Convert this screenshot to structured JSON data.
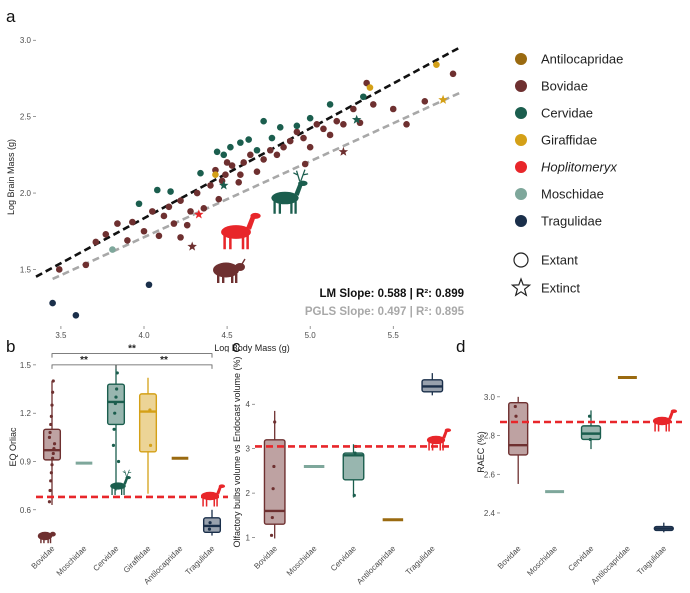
{
  "colors": {
    "Antilocapridae": "#9a6a10",
    "Bovidae": "#6e3030",
    "Cervidae": "#1b5e4e",
    "Giraffidae": "#d4a017",
    "Hoplitomeryx": "#e8262a",
    "Moschidae": "#7ea79b",
    "Tragulidae": "#1a2f4a",
    "lm": "#111111",
    "pgls": "#a8a8a8",
    "ref": "#e8262a"
  },
  "legend": {
    "families": [
      {
        "key": "Antilocapridae",
        "label": "Antilocapridae",
        "italic": false
      },
      {
        "key": "Bovidae",
        "label": "Bovidae",
        "italic": false
      },
      {
        "key": "Cervidae",
        "label": "Cervidae",
        "italic": false
      },
      {
        "key": "Giraffidae",
        "label": "Giraffidae",
        "italic": false
      },
      {
        "key": "Hoplitomeryx",
        "label": "Hoplitomeryx",
        "italic": true
      },
      {
        "key": "Moschidae",
        "label": "Moschidae",
        "italic": false
      },
      {
        "key": "Tragulidae",
        "label": "Tragulidae",
        "italic": false
      }
    ],
    "status": [
      {
        "shape": "circle",
        "label": "Extant"
      },
      {
        "shape": "star",
        "label": "Extinct"
      }
    ]
  },
  "chart_data": [
    {
      "panel": "a",
      "type": "scatter",
      "xlabel": "Log Body Mass (g)",
      "ylabel": "Log Brain Mass (g)",
      "xlim": [
        3.35,
        5.95
      ],
      "ylim": [
        1.13,
        3.08
      ],
      "xticks": [
        3.5,
        4.0,
        4.5,
        5.0,
        5.5
      ],
      "xtick_labels": [
        "3.5",
        "4.0",
        "4.5",
        "5.0",
        "5.5"
      ],
      "yticks": [
        1.5,
        2.0,
        2.5,
        3.0
      ],
      "ytick_labels": [
        "1.5",
        "2.0",
        "2.5",
        "3.0"
      ],
      "lm_line": {
        "label": "LM Slope: 0.588 | R²: 0.899",
        "slope": 0.588,
        "intercept": -0.517,
        "x_range": [
          3.35,
          5.9
        ]
      },
      "pgls_line": {
        "label": "PGLS Slope: 0.497 | R²: 0.895",
        "slope": 0.497,
        "intercept": -0.277,
        "x_range": [
          3.45,
          5.9
        ]
      },
      "points": [
        {
          "f": "Tragulidae",
          "x": 3.45,
          "y": 1.28,
          "s": "extant"
        },
        {
          "f": "Tragulidae",
          "x": 3.59,
          "y": 1.2,
          "s": "extant"
        },
        {
          "f": "Tragulidae",
          "x": 4.03,
          "y": 1.4,
          "s": "extant"
        },
        {
          "f": "Moschidae",
          "x": 3.81,
          "y": 1.63,
          "s": "extant"
        },
        {
          "f": "Bovidae",
          "x": 3.49,
          "y": 1.5,
          "s": "extant"
        },
        {
          "f": "Bovidae",
          "x": 3.65,
          "y": 1.53,
          "s": "extant"
        },
        {
          "f": "Bovidae",
          "x": 3.71,
          "y": 1.68,
          "s": "extant"
        },
        {
          "f": "Bovidae",
          "x": 3.77,
          "y": 1.73,
          "s": "extant"
        },
        {
          "f": "Bovidae",
          "x": 3.84,
          "y": 1.8,
          "s": "extant"
        },
        {
          "f": "Bovidae",
          "x": 3.9,
          "y": 1.69,
          "s": "extant"
        },
        {
          "f": "Bovidae",
          "x": 3.93,
          "y": 1.81,
          "s": "extant"
        },
        {
          "f": "Bovidae",
          "x": 4.0,
          "y": 1.75,
          "s": "extant"
        },
        {
          "f": "Bovidae",
          "x": 4.05,
          "y": 1.88,
          "s": "extant"
        },
        {
          "f": "Bovidae",
          "x": 4.09,
          "y": 1.72,
          "s": "extant"
        },
        {
          "f": "Bovidae",
          "x": 4.12,
          "y": 1.85,
          "s": "extant"
        },
        {
          "f": "Bovidae",
          "x": 4.15,
          "y": 1.91,
          "s": "extant"
        },
        {
          "f": "Bovidae",
          "x": 4.18,
          "y": 1.8,
          "s": "extant"
        },
        {
          "f": "Bovidae",
          "x": 4.22,
          "y": 1.95,
          "s": "extant"
        },
        {
          "f": "Bovidae",
          "x": 4.26,
          "y": 1.79,
          "s": "extant"
        },
        {
          "f": "Bovidae",
          "x": 4.28,
          "y": 1.88,
          "s": "extant"
        },
        {
          "f": "Bovidae",
          "x": 4.32,
          "y": 2.0,
          "s": "extant"
        },
        {
          "f": "Bovidae",
          "x": 4.36,
          "y": 1.9,
          "s": "extant"
        },
        {
          "f": "Bovidae",
          "x": 4.4,
          "y": 2.05,
          "s": "extant"
        },
        {
          "f": "Bovidae",
          "x": 4.43,
          "y": 2.15,
          "s": "extant"
        },
        {
          "f": "Bovidae",
          "x": 4.45,
          "y": 1.96,
          "s": "extant"
        },
        {
          "f": "Bovidae",
          "x": 4.49,
          "y": 2.12,
          "s": "extant"
        },
        {
          "f": "Bovidae",
          "x": 4.53,
          "y": 2.18,
          "s": "extant"
        },
        {
          "f": "Bovidae",
          "x": 4.57,
          "y": 2.07,
          "s": "extant"
        },
        {
          "f": "Bovidae",
          "x": 4.6,
          "y": 2.2,
          "s": "extant"
        },
        {
          "f": "Bovidae",
          "x": 4.64,
          "y": 2.25,
          "s": "extant"
        },
        {
          "f": "Bovidae",
          "x": 4.68,
          "y": 2.14,
          "s": "extant"
        },
        {
          "f": "Bovidae",
          "x": 4.72,
          "y": 2.22,
          "s": "extant"
        },
        {
          "f": "Bovidae",
          "x": 4.76,
          "y": 2.28,
          "s": "extant"
        },
        {
          "f": "Bovidae",
          "x": 4.8,
          "y": 2.25,
          "s": "extant"
        },
        {
          "f": "Bovidae",
          "x": 4.84,
          "y": 2.3,
          "s": "extant"
        },
        {
          "f": "Bovidae",
          "x": 4.88,
          "y": 2.34,
          "s": "extant"
        },
        {
          "f": "Bovidae",
          "x": 4.92,
          "y": 2.4,
          "s": "extant"
        },
        {
          "f": "Bovidae",
          "x": 4.96,
          "y": 2.36,
          "s": "extant"
        },
        {
          "f": "Bovidae",
          "x": 5.0,
          "y": 2.3,
          "s": "extant"
        },
        {
          "f": "Bovidae",
          "x": 5.04,
          "y": 2.45,
          "s": "extant"
        },
        {
          "f": "Bovidae",
          "x": 5.08,
          "y": 2.42,
          "s": "extant"
        },
        {
          "f": "Bovidae",
          "x": 5.12,
          "y": 2.38,
          "s": "extant"
        },
        {
          "f": "Bovidae",
          "x": 5.16,
          "y": 2.47,
          "s": "extant"
        },
        {
          "f": "Bovidae",
          "x": 5.2,
          "y": 2.45,
          "s": "extant"
        },
        {
          "f": "Bovidae",
          "x": 5.26,
          "y": 2.55,
          "s": "extant"
        },
        {
          "f": "Bovidae",
          "x": 5.3,
          "y": 2.46,
          "s": "extant"
        },
        {
          "f": "Bovidae",
          "x": 5.34,
          "y": 2.72,
          "s": "extant"
        },
        {
          "f": "Bovidae",
          "x": 5.38,
          "y": 2.58,
          "s": "extant"
        },
        {
          "f": "Bovidae",
          "x": 5.5,
          "y": 2.55,
          "s": "extant"
        },
        {
          "f": "Bovidae",
          "x": 5.58,
          "y": 2.45,
          "s": "extant"
        },
        {
          "f": "Bovidae",
          "x": 5.69,
          "y": 2.6,
          "s": "extant"
        },
        {
          "f": "Bovidae",
          "x": 5.86,
          "y": 2.78,
          "s": "extant"
        },
        {
          "f": "Bovidae",
          "x": 4.5,
          "y": 2.2,
          "s": "extant"
        },
        {
          "f": "Bovidae",
          "x": 4.22,
          "y": 1.71,
          "s": "extant"
        },
        {
          "f": "Bovidae",
          "x": 4.97,
          "y": 2.19,
          "s": "extant"
        },
        {
          "f": "Bovidae",
          "x": 4.58,
          "y": 2.12,
          "s": "extant"
        },
        {
          "f": "Bovidae",
          "x": 4.47,
          "y": 2.08,
          "s": "extant"
        },
        {
          "f": "Cervidae",
          "x": 3.97,
          "y": 1.93,
          "s": "extant"
        },
        {
          "f": "Cervidae",
          "x": 4.08,
          "y": 2.02,
          "s": "extant"
        },
        {
          "f": "Cervidae",
          "x": 4.16,
          "y": 2.01,
          "s": "extant"
        },
        {
          "f": "Cervidae",
          "x": 4.34,
          "y": 2.13,
          "s": "extant"
        },
        {
          "f": "Cervidae",
          "x": 4.44,
          "y": 2.27,
          "s": "extant"
        },
        {
          "f": "Cervidae",
          "x": 4.48,
          "y": 2.25,
          "s": "extant"
        },
        {
          "f": "Cervidae",
          "x": 4.52,
          "y": 2.3,
          "s": "extant"
        },
        {
          "f": "Cervidae",
          "x": 4.58,
          "y": 2.33,
          "s": "extant"
        },
        {
          "f": "Cervidae",
          "x": 4.63,
          "y": 2.35,
          "s": "extant"
        },
        {
          "f": "Cervidae",
          "x": 4.68,
          "y": 2.28,
          "s": "extant"
        },
        {
          "f": "Cervidae",
          "x": 4.72,
          "y": 2.47,
          "s": "extant"
        },
        {
          "f": "Cervidae",
          "x": 4.77,
          "y": 2.36,
          "s": "extant"
        },
        {
          "f": "Cervidae",
          "x": 4.82,
          "y": 2.43,
          "s": "extant"
        },
        {
          "f": "Cervidae",
          "x": 4.92,
          "y": 2.44,
          "s": "extant"
        },
        {
          "f": "Cervidae",
          "x": 5.0,
          "y": 2.49,
          "s": "extant"
        },
        {
          "f": "Cervidae",
          "x": 5.32,
          "y": 2.63,
          "s": "extant"
        },
        {
          "f": "Cervidae",
          "x": 5.12,
          "y": 2.58,
          "s": "extant"
        },
        {
          "f": "Giraffidae",
          "x": 4.43,
          "y": 2.12,
          "s": "extant"
        },
        {
          "f": "Giraffidae",
          "x": 5.36,
          "y": 2.69,
          "s": "extant"
        },
        {
          "f": "Giraffidae",
          "x": 5.76,
          "y": 2.84,
          "s": "extant"
        },
        {
          "f": "Giraffidae",
          "x": 5.8,
          "y": 2.61,
          "s": "extinct"
        },
        {
          "f": "Cervidae",
          "x": 4.48,
          "y": 2.05,
          "s": "extinct"
        },
        {
          "f": "Cervidae",
          "x": 5.28,
          "y": 2.48,
          "s": "extinct"
        },
        {
          "f": "Hoplitomeryx",
          "x": 4.33,
          "y": 1.86,
          "s": "extinct"
        },
        {
          "f": "Bovidae",
          "x": 4.29,
          "y": 1.65,
          "s": "extinct"
        },
        {
          "f": "Bovidae",
          "x": 5.2,
          "y": 2.27,
          "s": "extinct"
        }
      ]
    },
    {
      "panel": "b",
      "type": "box",
      "ylabel": "EQ Orliac",
      "ylim": [
        0.4,
        1.58
      ],
      "yticks": [
        0.6,
        0.9,
        1.2,
        1.5
      ],
      "ytick_labels": [
        "0.6",
        "0.9",
        "1.2",
        "1.5"
      ],
      "categories": [
        "Bovidae",
        "Moschidae",
        "Cervidae",
        "Giraffidae",
        "Antilocapridae",
        "Tragulidae"
      ],
      "reference_line": 0.68,
      "significance": [
        {
          "from": "Bovidae",
          "to": "Cervidae",
          "label": "**",
          "level": 1.5
        },
        {
          "from": "Bovidae",
          "to": "Tragulidae",
          "label": "**",
          "level": 1.57
        },
        {
          "from": "Cervidae",
          "to": "Tragulidae",
          "label": "**",
          "level": 1.5
        }
      ],
      "boxes": [
        {
          "cat": "Bovidae",
          "fam": "Bovidae",
          "min": 0.63,
          "q1": 0.91,
          "median": 0.97,
          "q3": 1.1,
          "max": 1.4
        },
        {
          "cat": "Moschidae",
          "fam": "Moschidae",
          "min": 0.89,
          "q1": 0.89,
          "median": 0.89,
          "q3": 0.89,
          "max": 0.89
        },
        {
          "cat": "Cervidae",
          "fam": "Cervidae",
          "min": 0.72,
          "q1": 1.13,
          "median": 1.27,
          "q3": 1.38,
          "max": 1.5
        },
        {
          "cat": "Giraffidae",
          "fam": "Giraffidae",
          "min": 0.7,
          "q1": 0.96,
          "median": 1.21,
          "q3": 1.32,
          "max": 1.42
        },
        {
          "cat": "Antilocapridae",
          "fam": "Antilocapridae",
          "min": 0.92,
          "q1": 0.92,
          "median": 0.92,
          "q3": 0.92,
          "max": 0.92
        },
        {
          "cat": "Tragulidae",
          "fam": "Tragulidae",
          "min": 0.44,
          "q1": 0.46,
          "median": 0.5,
          "q3": 0.55,
          "max": 0.6
        }
      ],
      "points": [
        {
          "cat": "Bovidae",
          "v": 0.65
        },
        {
          "cat": "Bovidae",
          "v": 0.72
        },
        {
          "cat": "Bovidae",
          "v": 0.78
        },
        {
          "cat": "Bovidae",
          "v": 0.83
        },
        {
          "cat": "Bovidae",
          "v": 0.88
        },
        {
          "cat": "Bovidae",
          "v": 0.92
        },
        {
          "cat": "Bovidae",
          "v": 0.95
        },
        {
          "cat": "Bovidae",
          "v": 0.98
        },
        {
          "cat": "Bovidae",
          "v": 1.01
        },
        {
          "cat": "Bovidae",
          "v": 1.05
        },
        {
          "cat": "Bovidae",
          "v": 1.08
        },
        {
          "cat": "Bovidae",
          "v": 1.13
        },
        {
          "cat": "Bovidae",
          "v": 1.18
        },
        {
          "cat": "Bovidae",
          "v": 1.25
        },
        {
          "cat": "Bovidae",
          "v": 1.33
        },
        {
          "cat": "Bovidae",
          "v": 1.4
        },
        {
          "cat": "Cervidae",
          "v": 0.75
        },
        {
          "cat": "Cervidae",
          "v": 0.9
        },
        {
          "cat": "Cervidae",
          "v": 1.0
        },
        {
          "cat": "Cervidae",
          "v": 1.1
        },
        {
          "cat": "Cervidae",
          "v": 1.2
        },
        {
          "cat": "Cervidae",
          "v": 1.26
        },
        {
          "cat": "Cervidae",
          "v": 1.3
        },
        {
          "cat": "Cervidae",
          "v": 1.35
        },
        {
          "cat": "Cervidae",
          "v": 1.45
        },
        {
          "cat": "Giraffidae",
          "v": 1.22
        },
        {
          "cat": "Giraffidae",
          "v": 1.0
        },
        {
          "cat": "Tragulidae",
          "v": 0.48
        },
        {
          "cat": "Tragulidae",
          "v": 0.52
        }
      ]
    },
    {
      "panel": "c",
      "type": "box",
      "ylabel": "Olfactory bulbs volume vs Endocast volume (%)",
      "ylim": [
        0.9,
        4.95
      ],
      "yticks": [
        1,
        2,
        3,
        4
      ],
      "ytick_labels": [
        "1",
        "2",
        "3",
        "4"
      ],
      "categories": [
        "Bovidae",
        "Moschidae",
        "Cervidae",
        "Antilocapridae",
        "Tragulidae"
      ],
      "reference_line": 3.05,
      "boxes": [
        {
          "cat": "Bovidae",
          "fam": "Bovidae",
          "min": 0.98,
          "q1": 1.3,
          "median": 1.6,
          "q3": 3.2,
          "max": 3.85
        },
        {
          "cat": "Moschidae",
          "fam": "Moschidae",
          "min": 2.6,
          "q1": 2.6,
          "median": 2.6,
          "q3": 2.6,
          "max": 2.6
        },
        {
          "cat": "Cervidae",
          "fam": "Cervidae",
          "min": 1.9,
          "q1": 2.3,
          "median": 2.85,
          "q3": 2.9,
          "max": 3.1
        },
        {
          "cat": "Antilocapridae",
          "fam": "Antilocapridae",
          "min": 1.4,
          "q1": 1.4,
          "median": 1.4,
          "q3": 1.4,
          "max": 1.4
        },
        {
          "cat": "Tragulidae",
          "fam": "Tragulidae",
          "min": 4.2,
          "q1": 4.28,
          "median": 4.4,
          "q3": 4.55,
          "max": 4.7
        }
      ],
      "points": [
        {
          "cat": "Bovidae",
          "v": 1.05
        },
        {
          "cat": "Bovidae",
          "v": 1.45
        },
        {
          "cat": "Bovidae",
          "v": 2.1
        },
        {
          "cat": "Bovidae",
          "v": 2.6
        },
        {
          "cat": "Bovidae",
          "v": 3.6
        },
        {
          "cat": "Cervidae",
          "v": 1.95
        },
        {
          "cat": "Cervidae",
          "v": 2.9
        },
        {
          "cat": "Cervidae",
          "v": 3.05
        }
      ]
    },
    {
      "panel": "d",
      "type": "box",
      "ylabel": "RAEC (%)",
      "ylim": [
        2.25,
        3.18
      ],
      "yticks": [
        2.4,
        2.6,
        2.8,
        3.0
      ],
      "ytick_labels": [
        "2.4",
        "2.6",
        "2.8",
        "3.0"
      ],
      "categories": [
        "Bovidae",
        "Moschidae",
        "Cervidae",
        "Antilocapridae",
        "Tragulidae"
      ],
      "reference_line": 2.87,
      "boxes": [
        {
          "cat": "Bovidae",
          "fam": "Bovidae",
          "min": 2.55,
          "q1": 2.7,
          "median": 2.75,
          "q3": 2.97,
          "max": 3.0
        },
        {
          "cat": "Moschidae",
          "fam": "Moschidae",
          "min": 2.51,
          "q1": 2.51,
          "median": 2.51,
          "q3": 2.51,
          "max": 2.51
        },
        {
          "cat": "Cervidae",
          "fam": "Cervidae",
          "min": 2.73,
          "q1": 2.78,
          "median": 2.81,
          "q3": 2.85,
          "max": 2.93
        },
        {
          "cat": "Antilocapridae",
          "fam": "Antilocapridae",
          "min": 3.1,
          "q1": 3.1,
          "median": 3.1,
          "q3": 3.1,
          "max": 3.1
        },
        {
          "cat": "Tragulidae",
          "fam": "Tragulidae",
          "min": 2.3,
          "q1": 2.31,
          "median": 2.32,
          "q3": 2.33,
          "max": 2.35
        }
      ],
      "points": [
        {
          "cat": "Bovidae",
          "v": 2.95
        },
        {
          "cat": "Bovidae",
          "v": 2.9
        },
        {
          "cat": "Cervidae",
          "v": 2.9
        },
        {
          "cat": "Cervidae",
          "v": 2.78
        }
      ]
    }
  ]
}
